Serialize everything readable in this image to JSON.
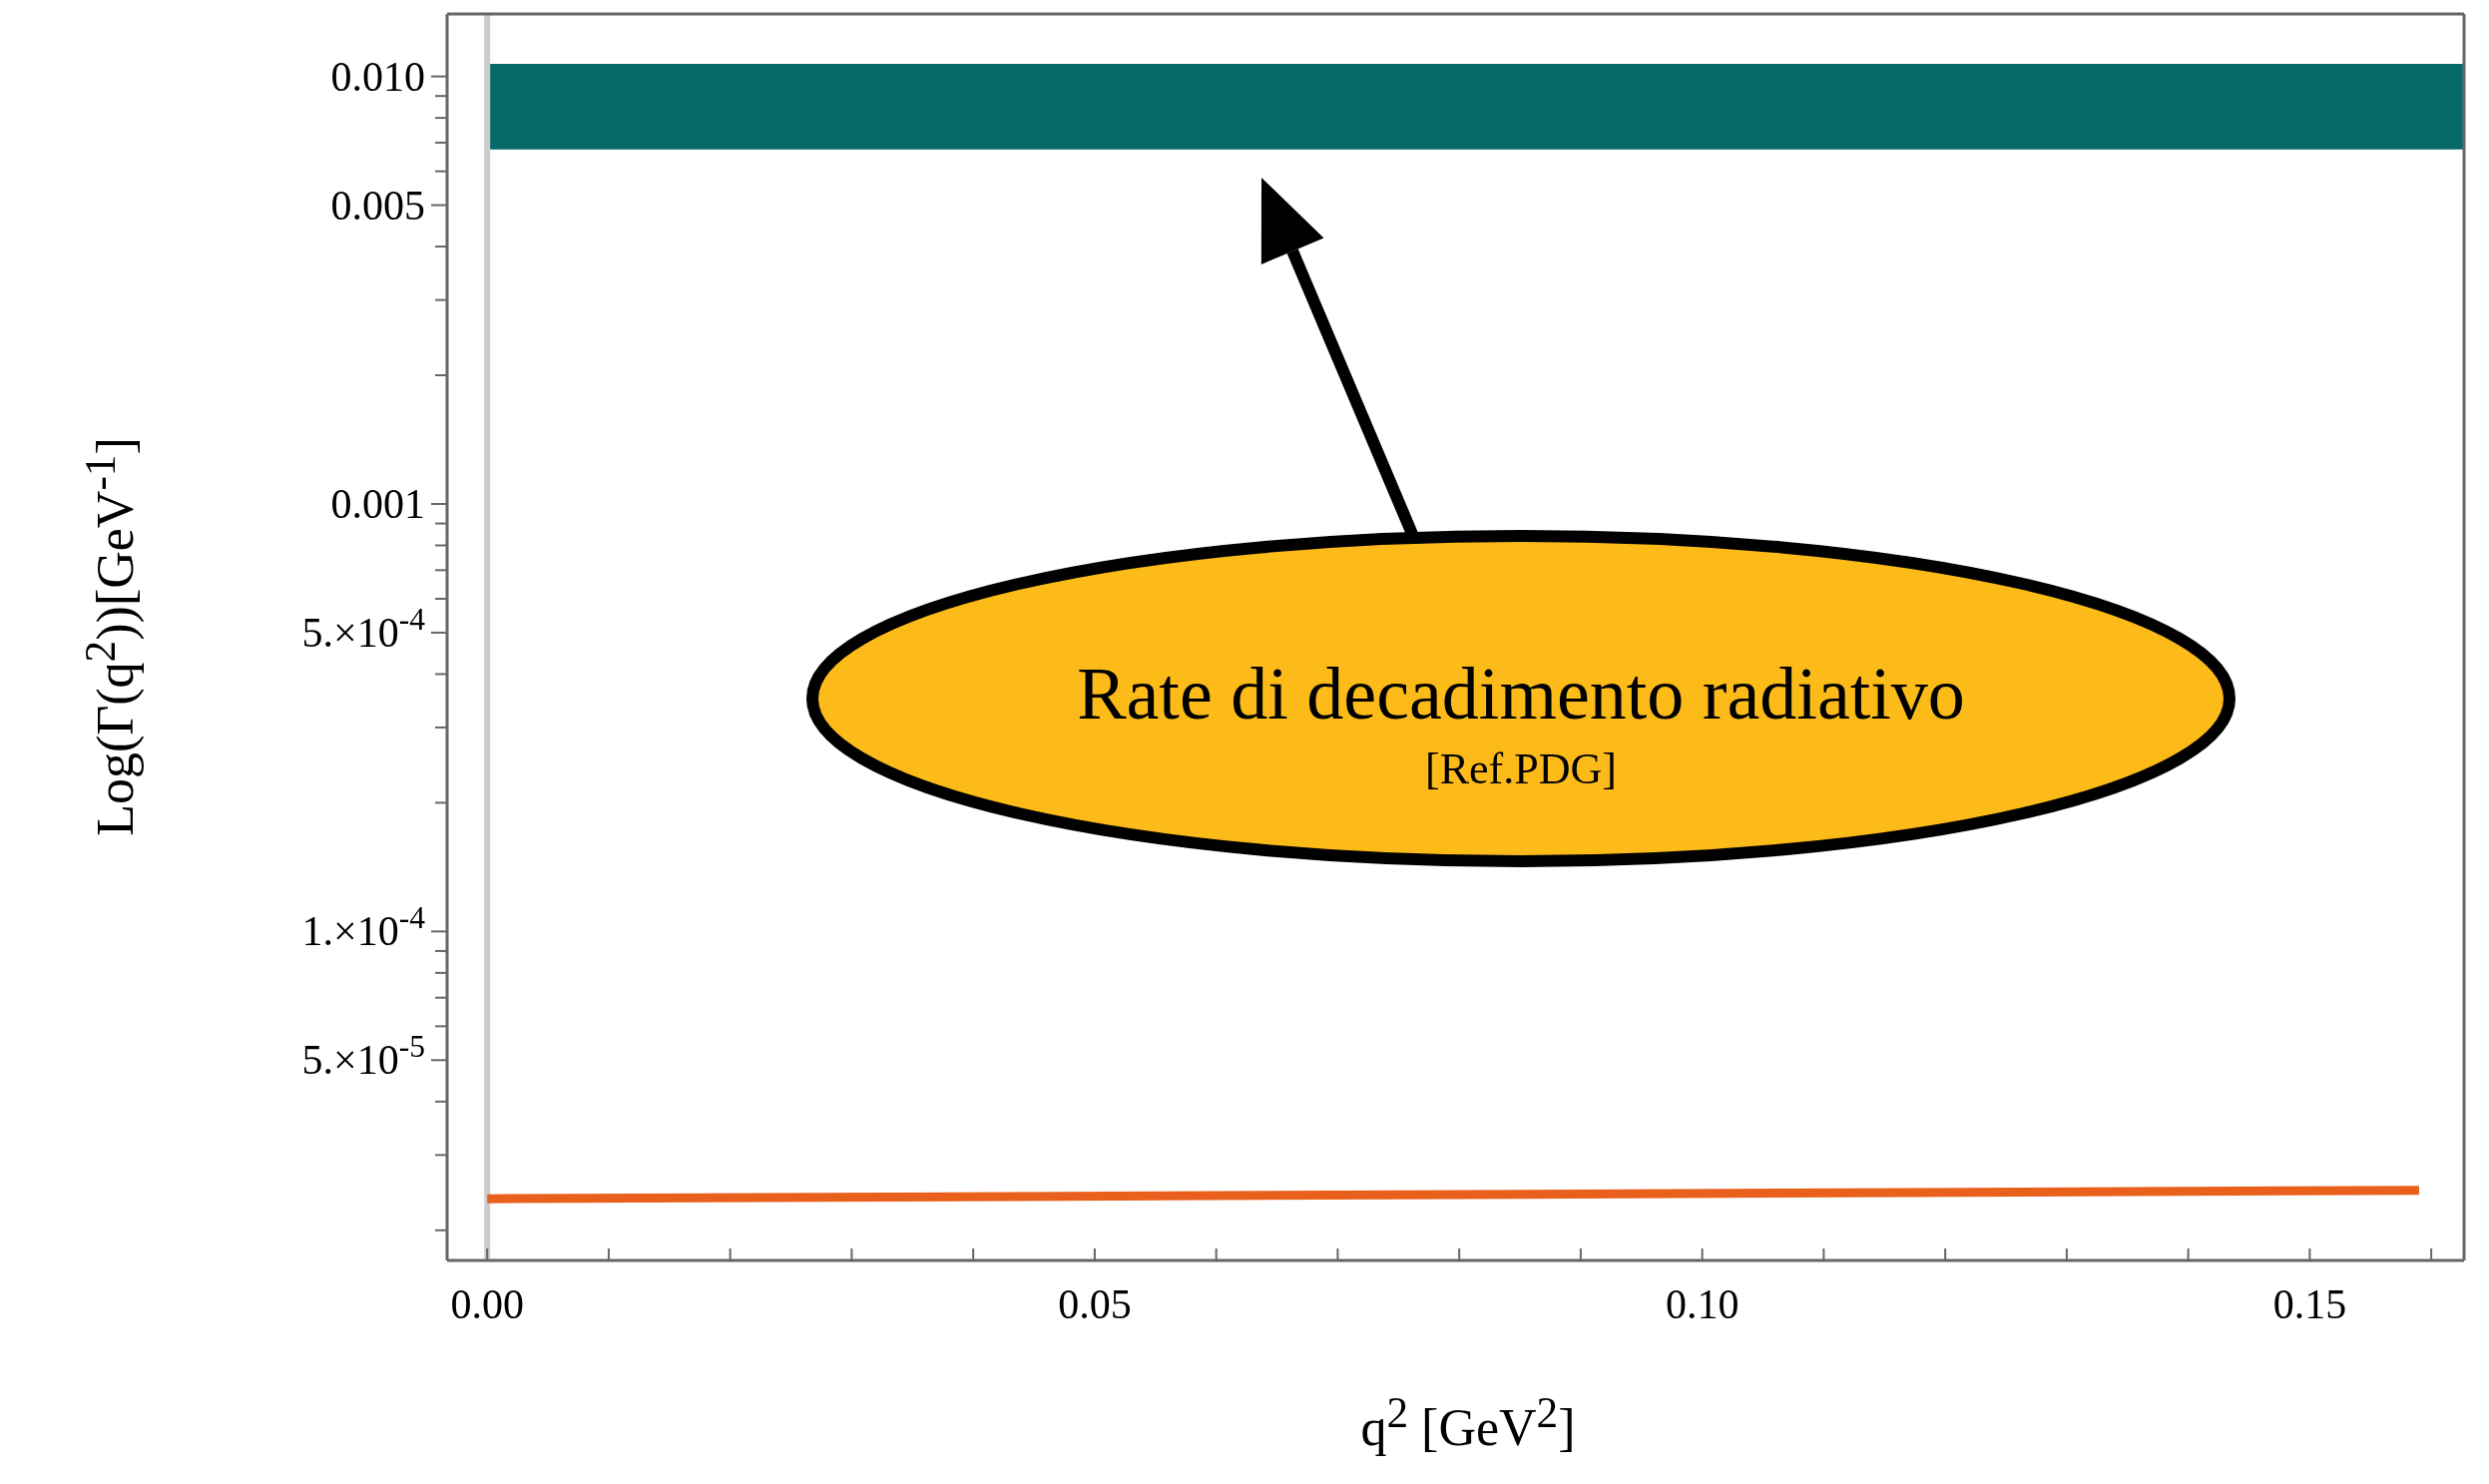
{
  "chart_data": {
    "type": "line",
    "xlabel": "q$^{2}$ [GeV$^{2}$]",
    "ylabel": "Log(Γ(q$^{2}$))[GeV$^{-1}$]",
    "log": "y",
    "grid": false,
    "marker": "none",
    "line_style": "solid",
    "xlim": [
      -0.0033,
      0.1627
    ],
    "xticks": [
      {
        "value": 0,
        "label": "0.00"
      },
      {
        "value": 0.01,
        "label": null
      },
      {
        "value": 0.02,
        "label": null
      },
      {
        "value": 0.03,
        "label": null
      },
      {
        "value": 0.04,
        "label": null
      },
      {
        "value": 0.05,
        "label": "0.05"
      },
      {
        "value": 0.06,
        "label": null
      },
      {
        "value": 0.07,
        "label": null
      },
      {
        "value": 0.08,
        "label": null
      },
      {
        "value": 0.09,
        "label": null
      },
      {
        "value": 0.1,
        "label": "0.10"
      },
      {
        "value": 0.11,
        "label": null
      },
      {
        "value": 0.12,
        "label": null
      },
      {
        "value": 0.13,
        "label": null
      },
      {
        "value": 0.14,
        "label": null
      },
      {
        "value": 0.15,
        "label": "0.15"
      },
      {
        "value": 0.16,
        "label": null
      }
    ],
    "ylim": [
      1.7e-05,
      0.014
    ],
    "yticks": [
      {
        "value": 2e-05,
        "label": null
      },
      {
        "value": 3e-05,
        "label": null
      },
      {
        "value": 4e-05,
        "label": null
      },
      {
        "value": 5e-05,
        "label": "5.×10$^{-5}$"
      },
      {
        "value": 6e-05,
        "label": null
      },
      {
        "value": 7e-05,
        "label": null
      },
      {
        "value": 8e-05,
        "label": null
      },
      {
        "value": 9e-05,
        "label": null
      },
      {
        "value": 0.0001,
        "label": "1.×10$^{-4}$"
      },
      {
        "value": 0.0002,
        "label": null
      },
      {
        "value": 0.0003,
        "label": null
      },
      {
        "value": 0.0004,
        "label": null
      },
      {
        "value": 0.0005,
        "label": "5.×10$^{-4}$"
      },
      {
        "value": 0.0006,
        "label": null
      },
      {
        "value": 0.0007,
        "label": null
      },
      {
        "value": 0.0008,
        "label": null
      },
      {
        "value": 0.0009,
        "label": null
      },
      {
        "value": 0.001,
        "label": "0.001"
      },
      {
        "value": 0.002,
        "label": null
      },
      {
        "value": 0.003,
        "label": null
      },
      {
        "value": 0.004,
        "label": null
      },
      {
        "value": 0.005,
        "label": "0.005"
      },
      {
        "value": 0.006,
        "label": null
      },
      {
        "value": 0.007,
        "label": null
      },
      {
        "value": 0.008,
        "label": null
      },
      {
        "value": 0.009,
        "label": null
      },
      {
        "value": 0.01,
        "label": "0.010"
      }
    ],
    "series": [
      {
        "color": "#e8601c",
        "x": [
          0,
          0.159
        ],
        "values": [
          2.37e-05,
          2.48e-05
        ]
      }
    ],
    "bands": [
      {
        "axis": "y",
        "from": 0.00675,
        "to": 0.0107,
        "color": "#05696a"
      }
    ],
    "ref_lines": [
      {
        "axis": "x",
        "value": 0,
        "color": "#cccccc"
      }
    ],
    "annotations": [
      "Rate di decadimento radiativo",
      "[Ref.PDG]"
    ]
  }
}
